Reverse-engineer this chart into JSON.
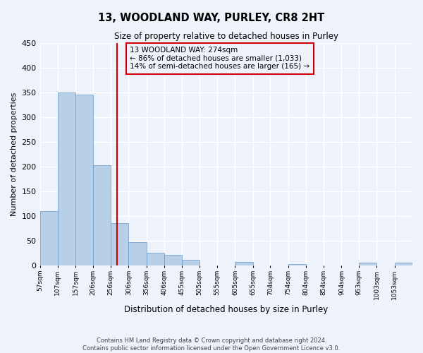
{
  "title": "13, WOODLAND WAY, PURLEY, CR8 2HT",
  "subtitle": "Size of property relative to detached houses in Purley",
  "xlabel": "Distribution of detached houses by size in Purley",
  "ylabel": "Number of detached properties",
  "bar_labels": [
    "57sqm",
    "107sqm",
    "157sqm",
    "206sqm",
    "256sqm",
    "306sqm",
    "356sqm",
    "406sqm",
    "455sqm",
    "505sqm",
    "555sqm",
    "605sqm",
    "655sqm",
    "704sqm",
    "754sqm",
    "804sqm",
    "854sqm",
    "904sqm",
    "953sqm",
    "1003sqm",
    "1053sqm"
  ],
  "bar_values": [
    110,
    350,
    345,
    203,
    85,
    47,
    25,
    22,
    12,
    0,
    0,
    7,
    0,
    0,
    3,
    0,
    0,
    0,
    6,
    0,
    6
  ],
  "bar_color": "#b8cfe8",
  "bar_edgecolor": "#6699cc",
  "ylim": [
    0,
    450
  ],
  "yticks": [
    0,
    50,
    100,
    150,
    200,
    250,
    300,
    350,
    400,
    450
  ],
  "property_line_x": 274,
  "property_line_color": "#cc0000",
  "annotation_line1": "13 WOODLAND WAY: 274sqm",
  "annotation_line2": "← 86% of detached houses are smaller (1,033)",
  "annotation_line3": "14% of semi-detached houses are larger (165) →",
  "annotation_box_edgecolor": "#cc0000",
  "footer_text": "Contains HM Land Registry data © Crown copyright and database right 2024.\nContains public sector information licensed under the Open Government Licence v3.0.",
  "background_color": "#eef2fb",
  "grid_color": "#ffffff",
  "bin_edges": [
    57,
    107,
    157,
    206,
    256,
    306,
    356,
    406,
    455,
    505,
    555,
    605,
    655,
    704,
    754,
    804,
    854,
    904,
    953,
    1003,
    1053,
    1103
  ]
}
